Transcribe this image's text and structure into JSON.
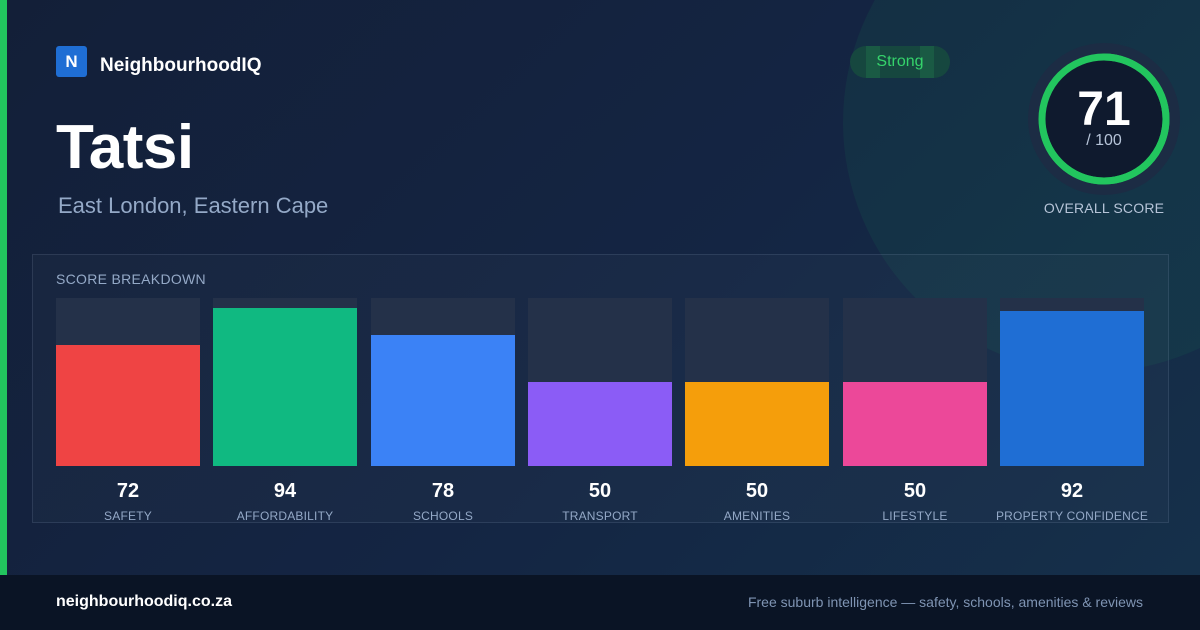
{
  "brand": {
    "name": "NeighbourhoodIQ",
    "logo_letter": "N",
    "logo_color": "#1f6ed4",
    "accent_color": "#22c55e"
  },
  "suburb": {
    "name": "Tatsi",
    "location": "East London, Eastern Cape"
  },
  "rating": {
    "label": "Strong",
    "color": "#22c55e"
  },
  "overall": {
    "value": 71,
    "max_label": "/ 100",
    "max": 100,
    "caption": "OVERALL SCORE",
    "ring_color": "#22c55e"
  },
  "chart_data": {
    "type": "bar",
    "title": "SCORE BREAKDOWN",
    "ylim": [
      0,
      100
    ],
    "grid": false,
    "categories": [
      "SAFETY",
      "AFFORDABILITY",
      "SCHOOLS",
      "TRANSPORT",
      "AMENITIES",
      "LIFESTYLE",
      "PROPERTY CONFIDENCE"
    ],
    "values": [
      72,
      94,
      78,
      50,
      50,
      50,
      92
    ],
    "colors": [
      "#ef4444",
      "#10b981",
      "#3b82f6",
      "#8b5cf6",
      "#f59e0b",
      "#ec4899",
      "#1f6ed4"
    ]
  },
  "footer": {
    "domain": "neighbourhoodiq.co.za",
    "tagline": "Free suburb intelligence — safety, schools, amenities & reviews"
  }
}
